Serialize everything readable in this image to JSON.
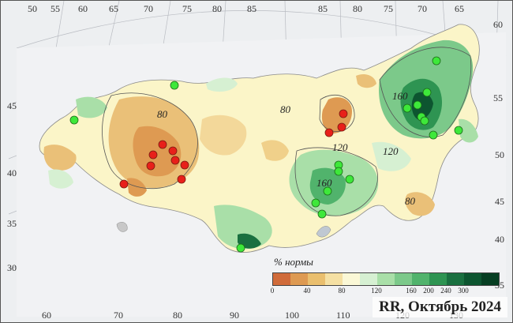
{
  "map": {
    "legend": {
      "title": "% нормы",
      "colors": [
        "#d06b3a",
        "#de9a52",
        "#eabf6e",
        "#f5e0a3",
        "#fbf8d6",
        "#d6f0d2",
        "#a9dfa8",
        "#7cc98a",
        "#51b36c",
        "#2e9452",
        "#1a7040",
        "#0d5530",
        "#063e22"
      ],
      "ticks": [
        "0",
        "40",
        "80",
        "120",
        "160",
        "200",
        "240",
        "300"
      ]
    },
    "title": "RR, Октябрь 2024",
    "contour_labels": [
      "80",
      "80",
      "80",
      "120",
      "160",
      "160",
      "120",
      "80"
    ],
    "longitude_labels_top": [
      "50",
      "55",
      "60",
      "65",
      "70",
      "75",
      "80",
      "85",
      "85",
      "80",
      "75",
      "70",
      "65"
    ],
    "latitude_labels_left": [
      "45",
      "40",
      "35",
      "30"
    ],
    "latitude_labels_right": [
      "60",
      "55",
      "50",
      "45",
      "40",
      "35"
    ],
    "longitude_labels_bottom": [
      "60",
      "70",
      "80",
      "90",
      "100",
      "110",
      "120",
      "130"
    ],
    "station_legend": {
      "red": "#e8201a",
      "green": "#3ee83a"
    },
    "red_stations": 13,
    "green_stations": 21
  }
}
